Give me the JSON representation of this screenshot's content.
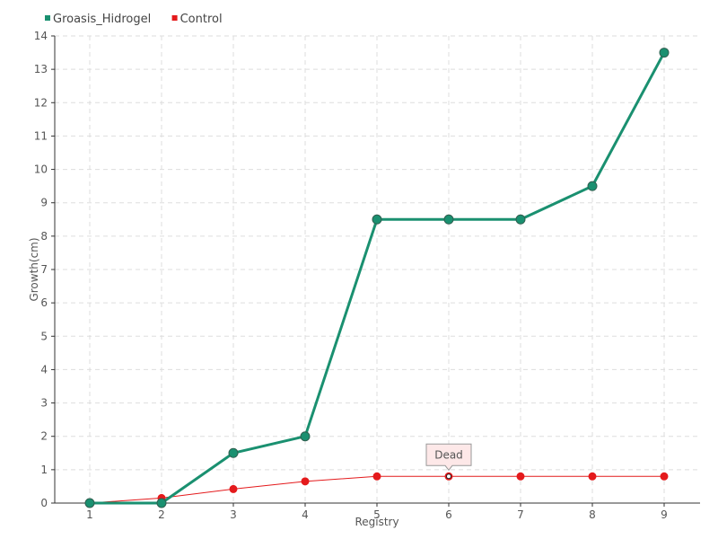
{
  "chart_data": {
    "type": "line",
    "title": "",
    "xlabel": "Registry",
    "ylabel": "Growth(cm)",
    "categories": [
      "1",
      "2",
      "3",
      "4",
      "5",
      "6",
      "7",
      "8",
      "9"
    ],
    "ylim": [
      0,
      14
    ],
    "yticks": [
      "0",
      "1",
      "2",
      "3",
      "4",
      "5",
      "6",
      "7",
      "8",
      "9",
      "10",
      "11",
      "12",
      "13",
      "14"
    ],
    "grid": true,
    "legend": "top-left",
    "series": [
      {
        "name": "Groasis_Hidrogel",
        "color": "#1a9070",
        "values": [
          0,
          0,
          1.5,
          2,
          8.5,
          8.5,
          8.5,
          9.5,
          13.5
        ]
      },
      {
        "name": "Control",
        "color": "#e41a1c",
        "values": [
          0,
          0.15,
          0.42,
          0.65,
          0.8,
          0.8,
          0.8,
          0.8,
          0.8
        ]
      }
    ],
    "annotations": [
      {
        "text": "Dead",
        "series": "Control",
        "x": "6"
      }
    ]
  }
}
